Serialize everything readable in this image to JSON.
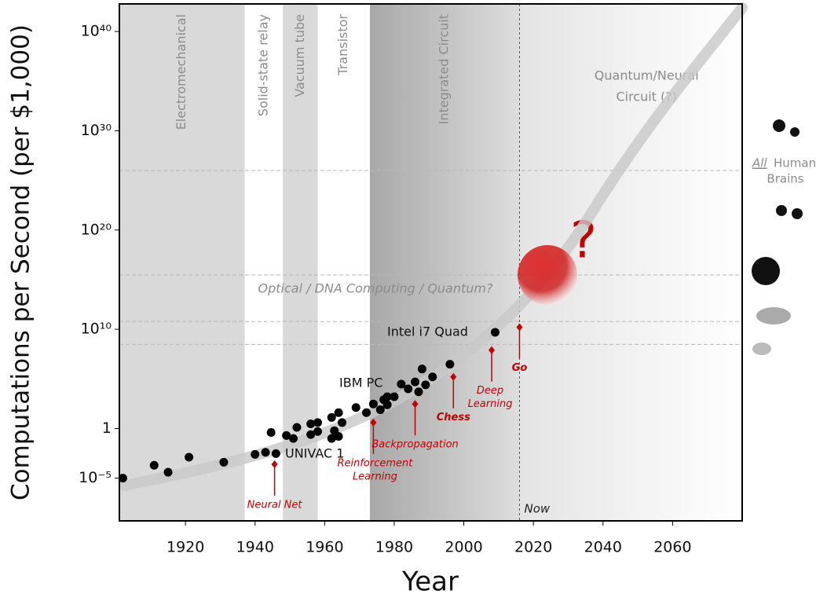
{
  "chart_data": {
    "type": "scatter",
    "x_label": "Year",
    "y_label": "Computations per Second (per $1,000)",
    "log_y": true,
    "xlim": [
      1901,
      2080
    ],
    "ylim": [
      5e-10,
      6e+42
    ],
    "xticks": [
      1920,
      1940,
      1960,
      1980,
      2000,
      2020,
      2040,
      2060
    ],
    "yticks": [
      {
        "value": 1e-05,
        "label": "10⁻⁵"
      },
      1,
      {
        "value": 10000000000.0,
        "label": "10¹⁰"
      },
      {
        "value": 1e+20,
        "label": "10²⁰"
      },
      {
        "value": 1e+30,
        "label": "10³⁰"
      },
      {
        "value": 1e+40,
        "label": "10⁴⁰"
      }
    ],
    "color": "#000000",
    "x": [
      1902,
      1911,
      1915,
      1921,
      1931,
      1940,
      1943,
      1944.6,
      1946,
      1949,
      1951,
      1952,
      1956,
      1956,
      1958,
      1958,
      1962,
      1962,
      1962.8,
      1964,
      1964,
      1965,
      1969,
      1972,
      1974,
      1976,
      1977,
      1978,
      1978,
      1980,
      1982,
      1984,
      1986,
      1987,
      1988,
      1989,
      1991,
      1996,
      2009
    ],
    "values": [
      1e-05,
      0.0002,
      4e-05,
      0.0013,
      0.0004,
      0.0025,
      0.004,
      0.4,
      0.003,
      0.2,
      0.1,
      1.3,
      3,
      0.25,
      4,
      0.5,
      13,
      0.1,
      0.6,
      40,
      0.16,
      4,
      130,
      40,
      300,
      80,
      800,
      1600,
      250,
      1600,
      30000,
      10000,
      50000,
      5000,
      1000000,
      25000,
      160000,
      3000000,
      5000000000
    ],
    "eras": [
      {
        "name": [
          "Electromechanical"
        ],
        "start": 1901,
        "end": 1937
      },
      {
        "name": [
          "Solid-state relay"
        ],
        "start": 1937,
        "end": 1948
      },
      {
        "name": [
          "Vacuum tube"
        ],
        "start": 1948,
        "end": 1958
      },
      {
        "name": [
          "Transistor"
        ],
        "start": 1958,
        "end": 1973
      },
      {
        "name": [
          "Integrated Circuit"
        ],
        "start": 1973,
        "end": 2016
      },
      {
        "name": [
          "Quantum/Neural",
          "Circuit (?)"
        ],
        "start": 2016,
        "end": 2080
      }
    ],
    "now": {
      "label": "Now",
      "x": 2016
    },
    "milestones": [
      {
        "label": [
          "Neural Net"
        ],
        "x": 1945.6,
        "value": 0.00025
      },
      {
        "label": [
          "Reinforcement",
          "Learning"
        ],
        "x": 1974,
        "value": 4
      },
      {
        "label": [
          "Backpropagation"
        ],
        "x": 1986,
        "value": 300
      },
      {
        "label": [
          "Chess"
        ],
        "x": 1997,
        "value": 160000
      },
      {
        "label": [
          "Deep",
          "Learning"
        ],
        "x": 2008,
        "value": 80000000
      },
      {
        "label": [
          "Go"
        ],
        "x": 2016,
        "value": 16000000000
      }
    ],
    "annotations": [
      "UNIVAC 1",
      "IBM PC",
      "Intel i7 Quad",
      "Optical / DNA Computing / Quantum?",
      "?"
    ],
    "reference_lines": [
      1e+26,
      3000000000000000.0,
      60000000000.0,
      300000000.0
    ],
    "brains_label": [
      "All",
      "Human",
      "Brains"
    ]
  }
}
